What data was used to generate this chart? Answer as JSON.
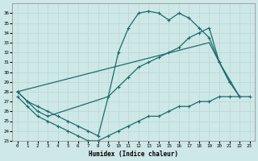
{
  "xlabel": "Humidex (Indice chaleur)",
  "bg_color": "#cde8e6",
  "line_color": "#1a6b6b",
  "grid_color": "#b8d8d6",
  "ylim": [
    23,
    37
  ],
  "xlim": [
    -0.5,
    23.5
  ],
  "yticks": [
    23,
    24,
    25,
    26,
    27,
    28,
    29,
    30,
    31,
    32,
    33,
    34,
    35,
    36
  ],
  "xticks": [
    0,
    1,
    2,
    3,
    4,
    5,
    6,
    7,
    8,
    9,
    10,
    11,
    12,
    13,
    14,
    15,
    16,
    17,
    18,
    19,
    20,
    21,
    22,
    23
  ],
  "curve1_x": [
    0,
    1,
    2,
    3,
    4,
    5,
    6,
    7,
    8,
    9,
    10,
    11,
    12,
    13,
    14,
    15,
    16,
    17,
    18,
    19,
    20,
    21
  ],
  "curve1_y": [
    28.0,
    27.0,
    26.5,
    26.0,
    25.5,
    25.0,
    24.5,
    24.0,
    23.5,
    27.5,
    32.0,
    34.5,
    36.0,
    36.2,
    36.0,
    35.3,
    36.0,
    35.5,
    34.5,
    33.5,
    31.0,
    29.0
  ],
  "curve2_x": [
    0,
    1,
    2,
    3,
    9,
    10,
    11,
    12,
    13,
    14,
    15,
    16,
    17,
    18,
    19,
    20,
    21,
    22
  ],
  "curve2_y": [
    28.0,
    27.0,
    26.0,
    25.5,
    27.5,
    28.5,
    29.5,
    30.5,
    31.0,
    31.5,
    32.0,
    32.5,
    33.5,
    34.0,
    34.5,
    31.0,
    29.0,
    27.5
  ],
  "line3_x": [
    0,
    19,
    20,
    22
  ],
  "line3_y": [
    28.0,
    33.0,
    31.0,
    27.5
  ],
  "curve4_x": [
    0,
    1,
    2,
    3,
    4,
    5,
    6,
    7,
    8,
    9,
    10,
    11,
    12,
    13,
    14,
    15,
    16,
    17,
    18,
    19,
    20,
    21,
    22,
    23
  ],
  "curve4_y": [
    27.5,
    26.5,
    25.5,
    25.0,
    24.5,
    24.0,
    23.5,
    23.0,
    23.0,
    23.5,
    24.0,
    24.5,
    25.0,
    25.5,
    25.5,
    26.0,
    26.5,
    26.5,
    27.0,
    27.0,
    27.5,
    27.5,
    27.5,
    27.5
  ]
}
